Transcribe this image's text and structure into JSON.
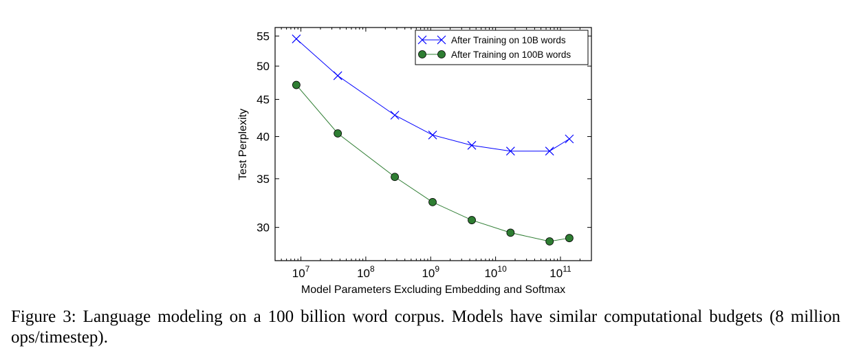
{
  "chart_data": {
    "type": "line",
    "xscale": "log",
    "yscale": "log",
    "xlabel": "Model Parameters Excluding Embedding and Softmax",
    "ylabel": "Test Perplexity",
    "xlim": [
      4000000,
      300000000000
    ],
    "ylim": [
      27,
      56.5
    ],
    "x_ticks": [
      10000000,
      100000000,
      1000000000,
      10000000000,
      100000000000
    ],
    "x_tick_exponents": [
      "7",
      "8",
      "9",
      "10",
      "11"
    ],
    "x_tick_base": "10",
    "y_ticks": [
      30,
      35,
      40,
      45,
      50,
      55
    ],
    "y_tick_labels": [
      "30",
      "35",
      "40",
      "45",
      "50",
      "55"
    ],
    "legend_position": "top-right",
    "series": [
      {
        "name": "After Training on 10B words",
        "color": "#0000ff",
        "marker": "x",
        "x": [
          8500000,
          37000000,
          280000000,
          1070000000,
          4300000000,
          17000000000,
          68000000000,
          137000000000
        ],
        "y": [
          54.5,
          48.5,
          42.8,
          40.2,
          38.9,
          38.2,
          38.2,
          39.7
        ]
      },
      {
        "name": "After Training on 100B words",
        "color": "#2e7d32",
        "marker": "o",
        "x": [
          8500000,
          37000000,
          280000000,
          1070000000,
          4300000000,
          17000000000,
          68000000000,
          137000000000
        ],
        "y": [
          47.1,
          40.4,
          35.2,
          32.5,
          30.7,
          29.5,
          28.7,
          29.0
        ]
      }
    ]
  },
  "caption": "Figure 3: Language modeling on a 100 billion word corpus. Models have similar computational budgets (8 million ops/timestep)."
}
